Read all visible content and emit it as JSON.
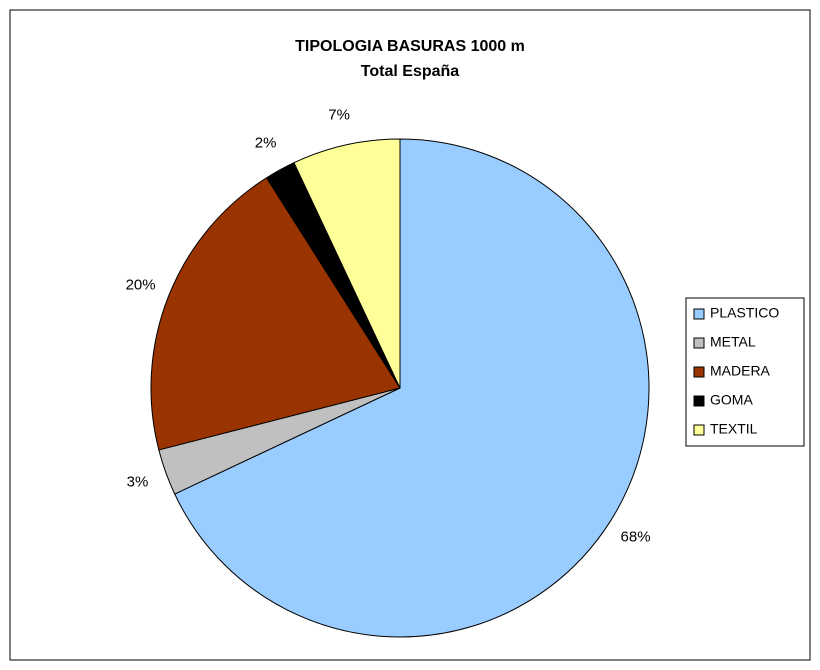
{
  "chart_data": {
    "type": "pie",
    "title": "TIPOLOGIA BASURAS 1000 m",
    "subtitle": "Total España",
    "categories": [
      "PLASTICO",
      "METAL",
      "MADERA",
      "GOMA",
      "TEXTIL"
    ],
    "values": [
      68,
      3,
      20,
      2,
      7
    ],
    "value_labels": [
      "68%",
      "3%",
      "20%",
      "2%",
      "7%"
    ],
    "colors": [
      "#99ccff",
      "#c0c0c0",
      "#993300",
      "#000000",
      "#ffff99"
    ],
    "legend": "right"
  }
}
